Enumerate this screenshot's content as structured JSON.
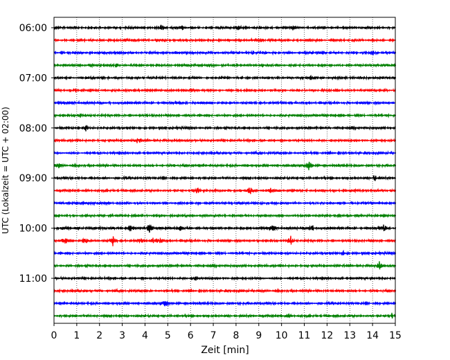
{
  "chart_data": {
    "type": "line",
    "chart_kind": "helicorder",
    "xlabel": "Zeit  [min]",
    "ylabel": "UTC (Lokalzeit = UTC + 02:00)",
    "xlim": [
      0,
      15
    ],
    "x_ticks": [
      "0",
      "1",
      "2",
      "3",
      "4",
      "5",
      "6",
      "7",
      "8",
      "9",
      "10",
      "11",
      "12",
      "13",
      "14",
      "15"
    ],
    "y_tick_labels": [
      "06:00",
      "07:00",
      "08:00",
      "09:00",
      "10:00",
      "11:00"
    ],
    "trace_start_times": [
      "06:00",
      "06:15",
      "06:30",
      "06:45",
      "07:00",
      "07:15",
      "07:30",
      "07:45",
      "08:00",
      "08:15",
      "08:30",
      "08:45",
      "09:00",
      "09:15",
      "09:30",
      "09:45",
      "10:00",
      "10:15",
      "10:30",
      "10:45",
      "11:00",
      "11:15",
      "11:30",
      "11:45"
    ],
    "trace_colors": [
      "#000000",
      "#ff0000",
      "#0000ff",
      "#008000"
    ],
    "vertical_grid": "dotted, every 1 min",
    "events": [
      {
        "trace": 0,
        "x": 4.7,
        "amp": 0.45
      },
      {
        "trace": 0,
        "x": 5.6,
        "amp": 0.3
      },
      {
        "trace": 0,
        "x": 8.1,
        "amp": 0.3
      },
      {
        "trace": 0,
        "x": 10.5,
        "amp": 0.3
      },
      {
        "trace": 2,
        "x": 8.8,
        "amp": 0.35
      },
      {
        "trace": 2,
        "x": 14.0,
        "amp": 0.3
      },
      {
        "trace": 3,
        "x": 2.7,
        "amp": 0.3
      },
      {
        "trace": 4,
        "x": 11.3,
        "amp": 0.3
      },
      {
        "trace": 5,
        "x": 1.0,
        "amp": 0.3
      },
      {
        "trace": 7,
        "x": 1.1,
        "amp": 0.3
      },
      {
        "trace": 8,
        "x": 1.4,
        "amp": 0.3
      },
      {
        "trace": 9,
        "x": 3.7,
        "amp": 0.6
      },
      {
        "trace": 11,
        "x": 0.2,
        "amp": 0.35
      },
      {
        "trace": 11,
        "x": 11.2,
        "amp": 0.6
      },
      {
        "trace": 12,
        "x": 14.1,
        "amp": 0.35
      },
      {
        "trace": 13,
        "x": 6.3,
        "amp": 0.45
      },
      {
        "trace": 13,
        "x": 8.6,
        "amp": 0.55
      },
      {
        "trace": 13,
        "x": 9.5,
        "amp": 0.3
      },
      {
        "trace": 16,
        "x": 0.5,
        "amp": 0.4
      },
      {
        "trace": 16,
        "x": 3.4,
        "amp": 0.45
      },
      {
        "trace": 16,
        "x": 4.2,
        "amp": 0.8
      },
      {
        "trace": 16,
        "x": 5.6,
        "amp": 0.6
      },
      {
        "trace": 16,
        "x": 9.6,
        "amp": 0.35
      },
      {
        "trace": 16,
        "x": 11.3,
        "amp": 0.55
      },
      {
        "trace": 16,
        "x": 14.5,
        "amp": 0.4
      },
      {
        "trace": 17,
        "x": 0.5,
        "amp": 0.45
      },
      {
        "trace": 17,
        "x": 1.4,
        "amp": 0.5
      },
      {
        "trace": 17,
        "x": 2.6,
        "amp": 0.75
      },
      {
        "trace": 17,
        "x": 3.8,
        "amp": 0.35
      },
      {
        "trace": 17,
        "x": 4.4,
        "amp": 0.6
      },
      {
        "trace": 17,
        "x": 4.7,
        "amp": 0.55
      },
      {
        "trace": 17,
        "x": 10.4,
        "amp": 0.5
      },
      {
        "trace": 18,
        "x": 12.7,
        "amp": 0.3
      },
      {
        "trace": 19,
        "x": 14.3,
        "amp": 0.45
      },
      {
        "trace": 20,
        "x": 6.2,
        "amp": 0.35
      },
      {
        "trace": 22,
        "x": 4.9,
        "amp": 0.45
      },
      {
        "trace": 23,
        "x": 10.2,
        "amp": 0.3
      },
      {
        "trace": 23,
        "x": 14.8,
        "amp": 0.55
      }
    ]
  }
}
